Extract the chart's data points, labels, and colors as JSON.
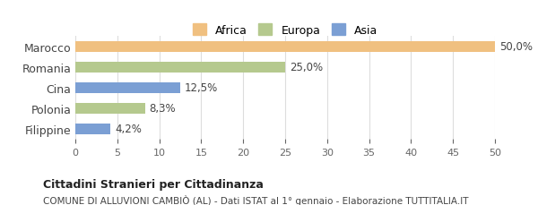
{
  "categories": [
    "Marocco",
    "Romania",
    "Cina",
    "Polonia",
    "Filippine"
  ],
  "values": [
    50.0,
    25.0,
    12.5,
    8.3,
    4.2
  ],
  "labels": [
    "50,0%",
    "25,0%",
    "12,5%",
    "8,3%",
    "4,2%"
  ],
  "colors": [
    "#f0c080",
    "#b5c98e",
    "#7b9fd4",
    "#b5c98e",
    "#7b9fd4"
  ],
  "continents": [
    "Africa",
    "Europa",
    "Asia",
    "Europa",
    "Asia"
  ],
  "legend_labels": [
    "Africa",
    "Europa",
    "Asia"
  ],
  "legend_colors": [
    "#f0c080",
    "#b5c98e",
    "#7b9fd4"
  ],
  "xlim": [
    0,
    50
  ],
  "xticks": [
    0,
    5,
    10,
    15,
    20,
    25,
    30,
    35,
    40,
    45,
    50
  ],
  "title_bold": "Cittadini Stranieri per Cittadinanza",
  "subtitle": "COMUNE DI ALLUVIONI CAMBIÒ (AL) - Dati ISTAT al 1° gennaio - Elaborazione TUTTITALIA.IT",
  "background_color": "#ffffff",
  "bar_height": 0.55,
  "grid_color": "#dddddd",
  "label_fontsize": 8.5,
  "tick_fontsize": 8,
  "ytick_fontsize": 9
}
